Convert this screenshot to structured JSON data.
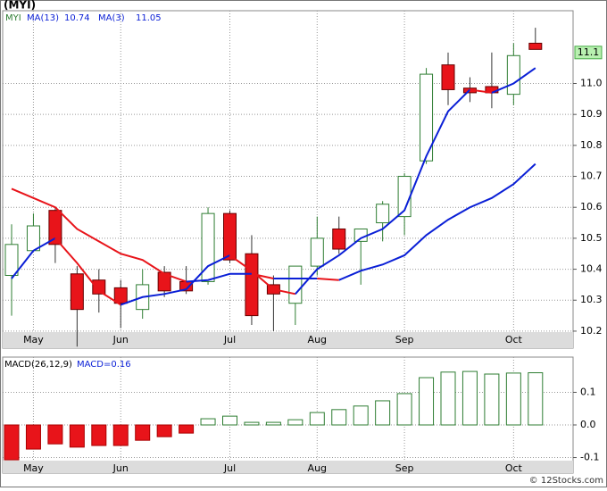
{
  "title": "(MYI)",
  "watermark": "© 12Stocks.com",
  "chart_data": [
    {
      "type": "candlestick",
      "symbol": "MYI",
      "categories": [
        null,
        "May",
        null,
        null,
        null,
        "Jun",
        null,
        null,
        null,
        null,
        "Jul",
        null,
        null,
        null,
        "Aug",
        null,
        null,
        null,
        "Sep",
        null,
        null,
        null,
        null,
        "Oct",
        null
      ],
      "open": [
        10.38,
        10.46,
        10.59,
        10.385,
        10.365,
        10.34,
        10.27,
        10.39,
        10.36,
        10.36,
        10.58,
        10.45,
        10.35,
        10.29,
        10.41,
        10.53,
        10.49,
        10.55,
        10.57,
        10.75,
        11.06,
        10.985,
        10.99,
        10.965,
        11.13
      ],
      "high": [
        10.545,
        10.58,
        10.6,
        10.41,
        10.4,
        10.365,
        10.4,
        10.41,
        10.41,
        10.6,
        10.59,
        10.51,
        10.38,
        10.41,
        10.57,
        10.57,
        10.53,
        10.62,
        10.71,
        11.05,
        11.1,
        11.02,
        11.1,
        11.13,
        11.18
      ],
      "low": [
        10.25,
        10.46,
        10.42,
        10.15,
        10.26,
        10.21,
        10.24,
        10.31,
        10.32,
        10.35,
        10.42,
        10.22,
        10.2,
        10.22,
        10.38,
        10.45,
        10.35,
        10.49,
        10.51,
        10.74,
        10.93,
        10.94,
        10.92,
        10.93,
        11.11
      ],
      "close": [
        10.48,
        10.54,
        10.48,
        10.27,
        10.32,
        10.29,
        10.35,
        10.33,
        10.33,
        10.58,
        10.43,
        10.25,
        10.32,
        10.41,
        10.5,
        10.465,
        10.53,
        10.61,
        10.7,
        11.03,
        10.98,
        10.97,
        10.97,
        11.09,
        11.11
      ],
      "up_color": "#2e7d32",
      "down_color": "#e8141a",
      "series": [
        {
          "name": "MA(13)",
          "values": [
            10.66,
            10.63,
            10.6,
            10.53,
            10.49,
            10.45,
            10.43,
            10.385,
            10.36,
            10.365,
            10.385,
            10.385,
            10.37,
            10.37,
            10.37,
            10.365,
            10.395,
            10.415,
            10.445,
            10.51,
            10.56,
            10.6,
            10.63,
            10.675,
            10.74
          ]
        },
        {
          "name": "MA(3)",
          "values": [
            10.37,
            10.46,
            10.5,
            10.42,
            10.33,
            10.285,
            10.31,
            10.32,
            10.335,
            10.41,
            10.445,
            10.395,
            10.335,
            10.32,
            10.4,
            10.445,
            10.5,
            10.53,
            10.59,
            10.765,
            10.91,
            10.98,
            10.97,
            11.0,
            11.05
          ]
        }
      ],
      "rising_color": "#0a1fd6",
      "falling_color": "#e8141a",
      "last_price": 11.1,
      "ylim": [
        10.145,
        11.235
      ],
      "yticks": [
        10.2,
        10.3,
        10.4,
        10.5,
        10.6,
        10.7,
        10.8,
        10.9,
        {
          "value": 11,
          "label": "11.0"
        }
      ],
      "grid": true
    },
    {
      "type": "bar",
      "name": "MACD(26,12,9)",
      "current_label": "MACD=0.16",
      "categories": [
        null,
        "May",
        null,
        null,
        null,
        "Jun",
        null,
        null,
        null,
        null,
        "Jul",
        null,
        null,
        null,
        "Aug",
        null,
        null,
        null,
        "Sep",
        null,
        null,
        null,
        null,
        "Oct",
        null
      ],
      "values": [
        -0.107,
        -0.074,
        -0.058,
        -0.068,
        -0.063,
        -0.063,
        -0.047,
        -0.036,
        -0.025,
        0.019,
        0.027,
        0.008,
        0.008,
        0.016,
        0.038,
        0.047,
        0.058,
        0.074,
        0.096,
        0.145,
        0.162,
        0.164,
        0.156,
        0.159,
        0.16
      ],
      "up_color": "#2e7d32",
      "down_color": "#e8141a",
      "ylim": [
        -0.11,
        0.208
      ],
      "yticks": [
        -0.1,
        {
          "value": 0,
          "label": "0.0"
        },
        0.1
      ],
      "grid": true
    }
  ]
}
